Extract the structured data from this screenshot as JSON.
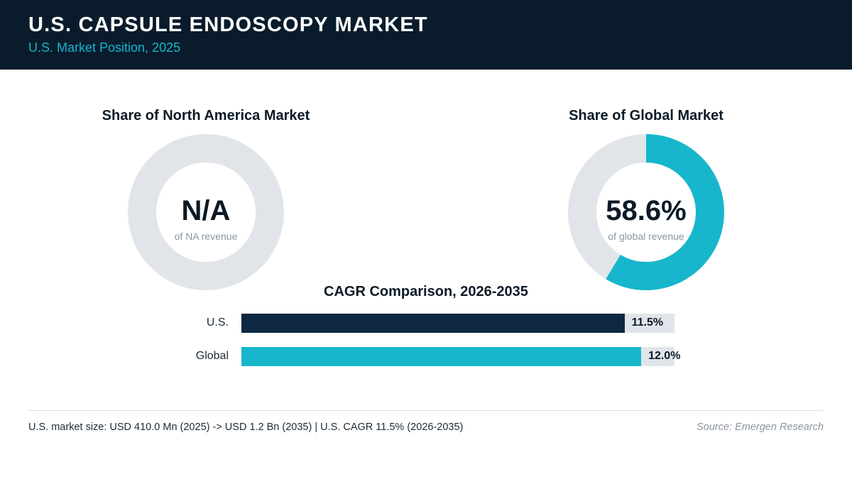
{
  "header": {
    "title": "U.S. CAPSULE ENDOSCOPY MARKET",
    "subtitle": "U.S. Market Position, 2025"
  },
  "colors": {
    "header_bg": "#0a1c2b",
    "accent": "#17b6cc",
    "navy": "#0d2840",
    "track": "#e1e5e9"
  },
  "chart_data": [
    {
      "type": "pie",
      "title": "Share of North America Market",
      "center_value": "N/A",
      "center_caption": "of NA revenue",
      "value": null
    },
    {
      "type": "pie",
      "title": "Share of Global Market",
      "center_value": "58.6%",
      "center_caption": "of global revenue",
      "value": 58.6
    },
    {
      "type": "bar",
      "orientation": "horizontal",
      "title": "CAGR Comparison, 2026-2035",
      "categories": [
        "U.S.",
        "Global"
      ],
      "values": [
        11.5,
        12.0
      ],
      "value_labels": [
        "11.5%",
        "12.0%"
      ],
      "colors": [
        "#0d2840",
        "#17b6cc"
      ],
      "xlim": [
        0,
        13
      ]
    }
  ],
  "footer": {
    "note": "U.S. market size: USD 410.0 Mn (2025) -> USD 1.2 Bn (2035)  |  U.S. CAGR 11.5% (2026-2035)",
    "source": "Source: Emergen Research"
  }
}
